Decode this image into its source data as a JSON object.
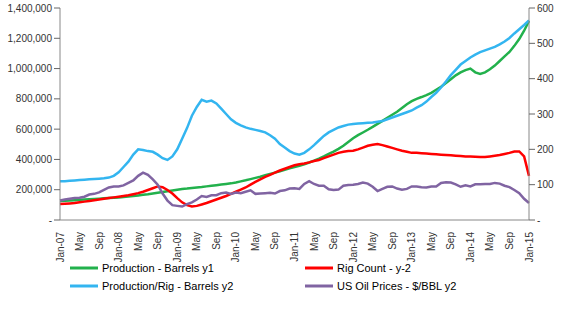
{
  "chart_data": {
    "type": "line",
    "legend": "bottom",
    "grid": false,
    "categories": [
      "Jan-07",
      null,
      null,
      null,
      "May",
      null,
      null,
      null,
      "Sep",
      null,
      null,
      null,
      "Jan-08",
      null,
      null,
      null,
      "May",
      null,
      null,
      null,
      "Sep",
      null,
      null,
      null,
      "Jan-09",
      null,
      null,
      null,
      "May",
      null,
      null,
      null,
      "Sep",
      null,
      null,
      null,
      "Jan-10",
      null,
      null,
      null,
      "May",
      null,
      null,
      null,
      "Sep",
      null,
      null,
      null,
      "Jan-11",
      null,
      null,
      null,
      "May",
      null,
      null,
      null,
      "Sep",
      null,
      null,
      null,
      "Jan-12",
      null,
      null,
      null,
      "May",
      null,
      null,
      null,
      "Sep",
      null,
      null,
      null,
      "Jan-13",
      null,
      null,
      null,
      "May",
      null,
      null,
      null,
      "Sep",
      null,
      null,
      null,
      "Jan-14",
      null,
      null,
      null,
      "May",
      null,
      null,
      null,
      "Sep",
      null,
      null,
      null,
      "Jan-15"
    ],
    "ylim": [
      0,
      1400000
    ],
    "yticks": [
      {
        "value": 0,
        "label": "-"
      },
      {
        "value": 200000,
        "label": "200,000"
      },
      {
        "value": 400000,
        "label": "400,000"
      },
      {
        "value": 600000,
        "label": "600,000"
      },
      {
        "value": 800000,
        "label": "800,000"
      },
      {
        "value": 1000000,
        "label": "1,000,000"
      },
      {
        "value": 1200000,
        "label": "1,200,000"
      },
      {
        "value": 1400000,
        "label": "1,400,000"
      }
    ],
    "y2lim": [
      0,
      600
    ],
    "y2ticks": [
      {
        "value": 0,
        "label": "-"
      },
      100,
      200,
      300,
      400,
      500,
      600
    ],
    "series": [
      {
        "name": "Production - Barrels y1",
        "color": "#22b14c",
        "axis": "y1",
        "values": [
          125000,
          127000,
          129000,
          131000,
          133000,
          135000,
          137000,
          139000,
          141000,
          143000,
          145000,
          147000,
          149000,
          152000,
          155000,
          158000,
          162000,
          166000,
          170000,
          175000,
          180000,
          185000,
          190000,
          195000,
          200000,
          205000,
          208000,
          212000,
          215000,
          218000,
          222000,
          226000,
          230000,
          234000,
          238000,
          242000,
          248000,
          255000,
          262000,
          270000,
          278000,
          286000,
          295000,
          304000,
          313000,
          322000,
          332000,
          341000,
          350000,
          358000,
          368000,
          380000,
          392000,
          405000,
          420000,
          436000,
          452000,
          470000,
          490000,
          515000,
          540000,
          560000,
          578000,
          596000,
          615000,
          635000,
          655000,
          675000,
          695000,
          715000,
          740000,
          765000,
          785000,
          800000,
          812000,
          825000,
          840000,
          860000,
          880000,
          905000,
          930000,
          955000,
          975000,
          990000,
          1000000,
          975000,
          965000,
          975000,
          995000,
          1020000,
          1050000,
          1080000,
          1110000,
          1150000,
          1195000,
          1250000,
          1315000
        ]
      },
      {
        "name": "Rig Count - y-2",
        "color": "#ff0000",
        "axis": "y2",
        "values": [
          45,
          46,
          47,
          48,
          50,
          52,
          54,
          56,
          58,
          60,
          62,
          64,
          66,
          68,
          70,
          73,
          76,
          80,
          85,
          90,
          95,
          93,
          85,
          75,
          62,
          50,
          42,
          38,
          40,
          44,
          48,
          53,
          58,
          63,
          68,
          74,
          80,
          86,
          92,
          100,
          108,
          115,
          122,
          128,
          134,
          140,
          145,
          150,
          155,
          158,
          160,
          163,
          167,
          170,
          175,
          180,
          185,
          190,
          193,
          195,
          196,
          200,
          205,
          210,
          213,
          215,
          212,
          208,
          204,
          200,
          196,
          193,
          190,
          190,
          189,
          188,
          187,
          186,
          185,
          184,
          183,
          182,
          181,
          180,
          180,
          179,
          178,
          178,
          180,
          182,
          184,
          187,
          190,
          194,
          194,
          180,
          125
        ]
      },
      {
        "name": "Production/Rig - Barrels y2",
        "color": "#33b5f0",
        "axis": "y2",
        "values": [
          110,
          110,
          111,
          112,
          113,
          114,
          115,
          116,
          117,
          118,
          120,
          125,
          135,
          150,
          165,
          185,
          200,
          198,
          195,
          193,
          185,
          175,
          170,
          180,
          200,
          230,
          260,
          295,
          320,
          340,
          335,
          338,
          330,
          315,
          300,
          285,
          275,
          268,
          262,
          258,
          255,
          252,
          248,
          240,
          230,
          215,
          205,
          195,
          188,
          185,
          190,
          200,
          212,
          225,
          238,
          248,
          255,
          262,
          266,
          270,
          272,
          273,
          274,
          275,
          276,
          278,
          280,
          285,
          290,
          295,
          300,
          305,
          310,
          318,
          325,
          335,
          348,
          360,
          375,
          392,
          410,
          425,
          440,
          450,
          460,
          468,
          475,
          480,
          485,
          490,
          497,
          505,
          515,
          528,
          540,
          552,
          565
        ]
      },
      {
        "name": "US Oil Prices - $/BBL y2",
        "color": "#8064a2",
        "axis": "y2",
        "values": [
          55,
          58,
          60,
          62,
          63,
          66,
          72,
          74,
          78,
          85,
          92,
          95,
          95,
          98,
          105,
          112,
          125,
          134,
          128,
          115,
          100,
          75,
          55,
          42,
          40,
          38,
          45,
          50,
          58,
          68,
          65,
          70,
          70,
          76,
          78,
          74,
          78,
          76,
          80,
          84,
          74,
          75,
          76,
          77,
          75,
          82,
          84,
          89,
          90,
          88,
          102,
          110,
          102,
          97,
          97,
          87,
          85,
          86,
          97,
          99,
          100,
          102,
          106,
          103,
          94,
          82,
          88,
          94,
          95,
          89,
          86,
          88,
          95,
          95,
          93,
          92,
          95,
          95,
          105,
          107,
          106,
          101,
          94,
          98,
          95,
          101,
          101,
          102,
          102,
          105,
          103,
          97,
          93,
          85,
          76,
          60,
          48
        ]
      }
    ]
  }
}
